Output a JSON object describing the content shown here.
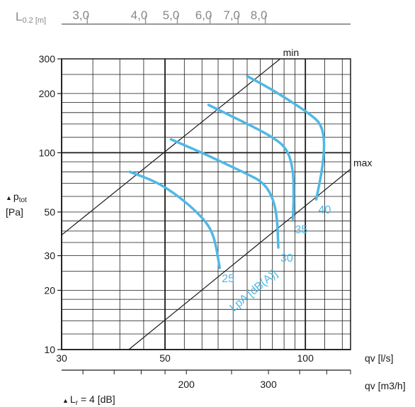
{
  "chart_data": {
    "type": "line",
    "top_axis": {
      "label_main": "L",
      "label_sub": "0.2 [m]",
      "ticks": [
        {
          "label": "3,0",
          "qv": 33
        },
        {
          "label": "4,0",
          "qv": 44
        },
        {
          "label": "5,0",
          "qv": 51.5
        },
        {
          "label": "6,0",
          "qv": 60.5
        },
        {
          "label": "7,0",
          "qv": 69.5
        },
        {
          "label": "8,0",
          "qv": 79.5
        }
      ]
    },
    "x_axis": {
      "label": "qv [l/s]",
      "scale": "log",
      "range": [
        30,
        125
      ],
      "tick_labels": [
        {
          "label": "30",
          "value": 30
        },
        {
          "label": "50",
          "value": 50
        },
        {
          "label": "100",
          "value": 100
        }
      ],
      "gridlines": [
        30,
        35,
        40,
        45,
        50,
        55,
        60,
        65,
        70,
        75,
        80,
        85,
        90,
        95,
        100,
        110,
        120
      ]
    },
    "x2_axis": {
      "label": "qv [m3/h]",
      "tick_labels": [
        {
          "label": "200",
          "value": 200
        },
        {
          "label": "300",
          "value": 300
        }
      ],
      "minor_ticks": [
        120,
        140,
        160,
        180,
        200,
        250,
        300,
        350,
        400,
        450
      ]
    },
    "y_axis": {
      "label_main": "p",
      "label_sub": "tot",
      "label_unit": "[Pa]",
      "scale": "log",
      "range": [
        10,
        300
      ],
      "tick_labels": [
        {
          "label": "10",
          "value": 10
        },
        {
          "label": "20",
          "value": 20
        },
        {
          "label": "30",
          "value": 30
        },
        {
          "label": "50",
          "value": 50
        },
        {
          "label": "100",
          "value": 100
        },
        {
          "label": "200",
          "value": 200
        },
        {
          "label": "300",
          "value": 300
        }
      ],
      "gridlines": [
        10,
        12,
        14,
        16,
        18,
        20,
        25,
        30,
        35,
        40,
        45,
        50,
        60,
        70,
        80,
        90,
        100,
        120,
        140,
        160,
        180,
        200,
        250,
        300
      ]
    },
    "limit_lines": [
      {
        "label": "min",
        "points": [
          [
            30,
            38.2
          ],
          [
            88.3,
            300
          ]
        ]
      },
      {
        "label": "max",
        "points": [
          [
            41.8,
            10
          ],
          [
            125,
            82.6
          ]
        ]
      }
    ],
    "series_group_label": "LpA [dB(A)]",
    "series": [
      {
        "label": "25",
        "points": [
          [
            42,
            80
          ],
          [
            48,
            71
          ],
          [
            53,
            61
          ],
          [
            58,
            51
          ],
          [
            62,
            43
          ],
          [
            64,
            36
          ],
          [
            65.5,
            26
          ]
        ]
      },
      {
        "label": "30",
        "points": [
          [
            51.5,
            117
          ],
          [
            60,
            100
          ],
          [
            68,
            87
          ],
          [
            75,
            78
          ],
          [
            81,
            71
          ],
          [
            85,
            60
          ],
          [
            87,
            47
          ],
          [
            87.5,
            33
          ]
        ]
      },
      {
        "label": "35",
        "points": [
          [
            62,
            175
          ],
          [
            70,
            152
          ],
          [
            78,
            134
          ],
          [
            85,
            120
          ],
          [
            91,
            106
          ],
          [
            94,
            85
          ],
          [
            94.5,
            62
          ],
          [
            94,
            46
          ]
        ]
      },
      {
        "label": "40",
        "points": [
          [
            75,
            245
          ],
          [
            84,
            212
          ],
          [
            94,
            180
          ],
          [
            103,
            155
          ],
          [
            108,
            140
          ],
          [
            110,
            115
          ],
          [
            109,
            85
          ],
          [
            105.5,
            58
          ]
        ]
      }
    ],
    "footnote_main": "L",
    "footnote_sub": "r",
    "footnote_rest": " = 4 [dB]",
    "colors": {
      "curves": "#4fb8e6",
      "grid": "#1a1a1a",
      "top_axis": "#999999"
    }
  }
}
